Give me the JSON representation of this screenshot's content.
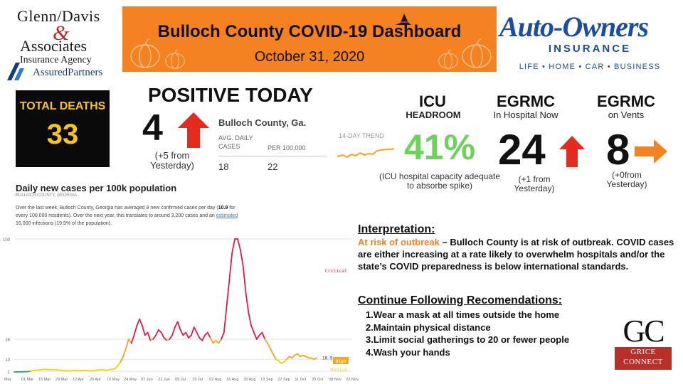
{
  "sponsor_left": {
    "line1": "Glenn/Davis",
    "amp": "&",
    "line2": "Associates",
    "line3": "Insurance Agency",
    "line4": "AssuredPartners"
  },
  "header": {
    "title": "Bulloch County COVID-19 Dashboard",
    "date": "October 31, 2020"
  },
  "sponsor_right": {
    "name": "Auto-Owners",
    "insurance": "INSURANCE",
    "tagline": "LIFE • HOME • CAR • BUSINESS"
  },
  "total_deaths": {
    "label": "TOTAL DEATHS",
    "value": "33"
  },
  "positive_today": {
    "label": "POSITIVE TODAY",
    "value": "4",
    "change": "(+5 from Yesterday)",
    "trend": "up"
  },
  "bulloch_table": {
    "title": "Bulloch County, Ga.",
    "col1_header": "AVG. DAILY CASES",
    "col2_header": "PER 100,000",
    "col1_value": "18",
    "col2_value": "22",
    "trend_label": "14-DAY TREND"
  },
  "icu": {
    "title": "ICU",
    "subtitle": "HEADROOM",
    "value": "41%",
    "note": "(ICU hospital capacity adequate to absorbe spike)"
  },
  "hospital": {
    "title": "EGRMC",
    "subtitle": "In Hospital Now",
    "value": "24",
    "note": "(+1 from Yesterday)",
    "trend": "up"
  },
  "vents": {
    "title": "EGRMC",
    "subtitle": "on Vents",
    "value": "8",
    "note": "(+0from Yesterday)",
    "trend": "flat"
  },
  "chart_section": {
    "title": "Daily new cases per 100k population",
    "subtitle": "BULLOCH COUNTY, GEORGIA",
    "desc_part1": "Over the last week, Bulloch County, Georgia has averaged 9 new confirmed cases per day (",
    "desc_bold": "10.9",
    "desc_part2": " for every 100,000 residents). Over the next year, this translates to around 3,200 cases and an ",
    "desc_link": "estimated",
    "desc_part3": " 16,000 infections (19.9% of the population)."
  },
  "chart_data": {
    "type": "line",
    "title": "Daily new cases per 100k population",
    "xlabel": "",
    "ylabel": "",
    "yticks": [
      1,
      10,
      25,
      100
    ],
    "ylim": [
      0,
      100
    ],
    "x_tick_labels": [
      "Mar",
      "01 Mar",
      "15 Mar",
      "29 Mar",
      "12 Apr",
      "26 Apr",
      "10 May",
      "24 May",
      "07 Jun",
      "21 Jun",
      "05 Jul",
      "19 Jul",
      "02 Aug",
      "16 Aug",
      "30 Aug",
      "13 Sep",
      "27 Sep",
      "11 Oct",
      "25 Oct",
      "08 Nov",
      "22 Nov"
    ],
    "thresholds": [
      {
        "label": "Critical",
        "value": 75,
        "color": "#e5194b"
      },
      {
        "label": "High",
        "value": 25,
        "color": "#f5a623"
      },
      {
        "label": "Medium",
        "value": 10,
        "color": "#f2d500"
      }
    ],
    "current_value_label": "10.9",
    "series": [
      {
        "values": [
          0.5,
          0.5,
          0.6,
          0.6,
          0.7,
          0.8,
          1,
          1.5,
          1.8,
          2,
          2.2,
          2.5,
          2.4,
          2.2,
          2.3,
          2.1,
          2,
          1.8,
          1.5,
          1.4,
          1.3,
          1.4,
          1.6,
          1.5,
          1.4,
          1.6,
          1.8,
          1.5,
          1.3,
          1.5,
          1.8,
          2,
          2.2,
          2,
          1.8,
          2.2,
          2.5,
          3,
          5,
          8,
          12,
          18,
          25,
          22,
          28,
          35,
          40,
          35,
          28,
          30,
          24,
          25,
          28,
          32,
          30,
          26,
          24,
          25,
          28,
          34,
          38,
          32,
          28,
          30,
          26,
          28,
          34,
          30,
          26,
          24,
          28,
          30,
          26,
          22,
          24,
          22,
          25,
          30,
          50,
          70,
          90,
          100,
          100,
          92,
          80,
          60,
          45,
          35,
          30,
          25,
          28,
          30,
          25,
          22,
          18,
          14,
          10,
          9,
          7,
          8,
          10,
          12,
          11,
          13,
          14,
          12,
          13,
          12,
          11,
          10.9,
          10,
          10.9
        ]
      }
    ]
  },
  "interpretation": {
    "heading": "Interpretation:",
    "risk_label": "At risk of outbreak",
    "body": " – Bulloch County is at risk of outbreak. COVID cases are either increasing at a rate likely to overwhelm hospitals and/or the state’s COVID preparedness is below international standards."
  },
  "recommendations": {
    "heading": "Continue Following Recomendations:",
    "items": [
      "1.Wear a mask at all times outside the home",
      "2.Maintain physical distance",
      "3.Limit social gatherings to 20 or fewer people",
      "4.Wash your hands"
    ]
  },
  "sponsor_bottom": {
    "mark": "GC",
    "line1": "GRICE",
    "line2": "CONNECT"
  }
}
